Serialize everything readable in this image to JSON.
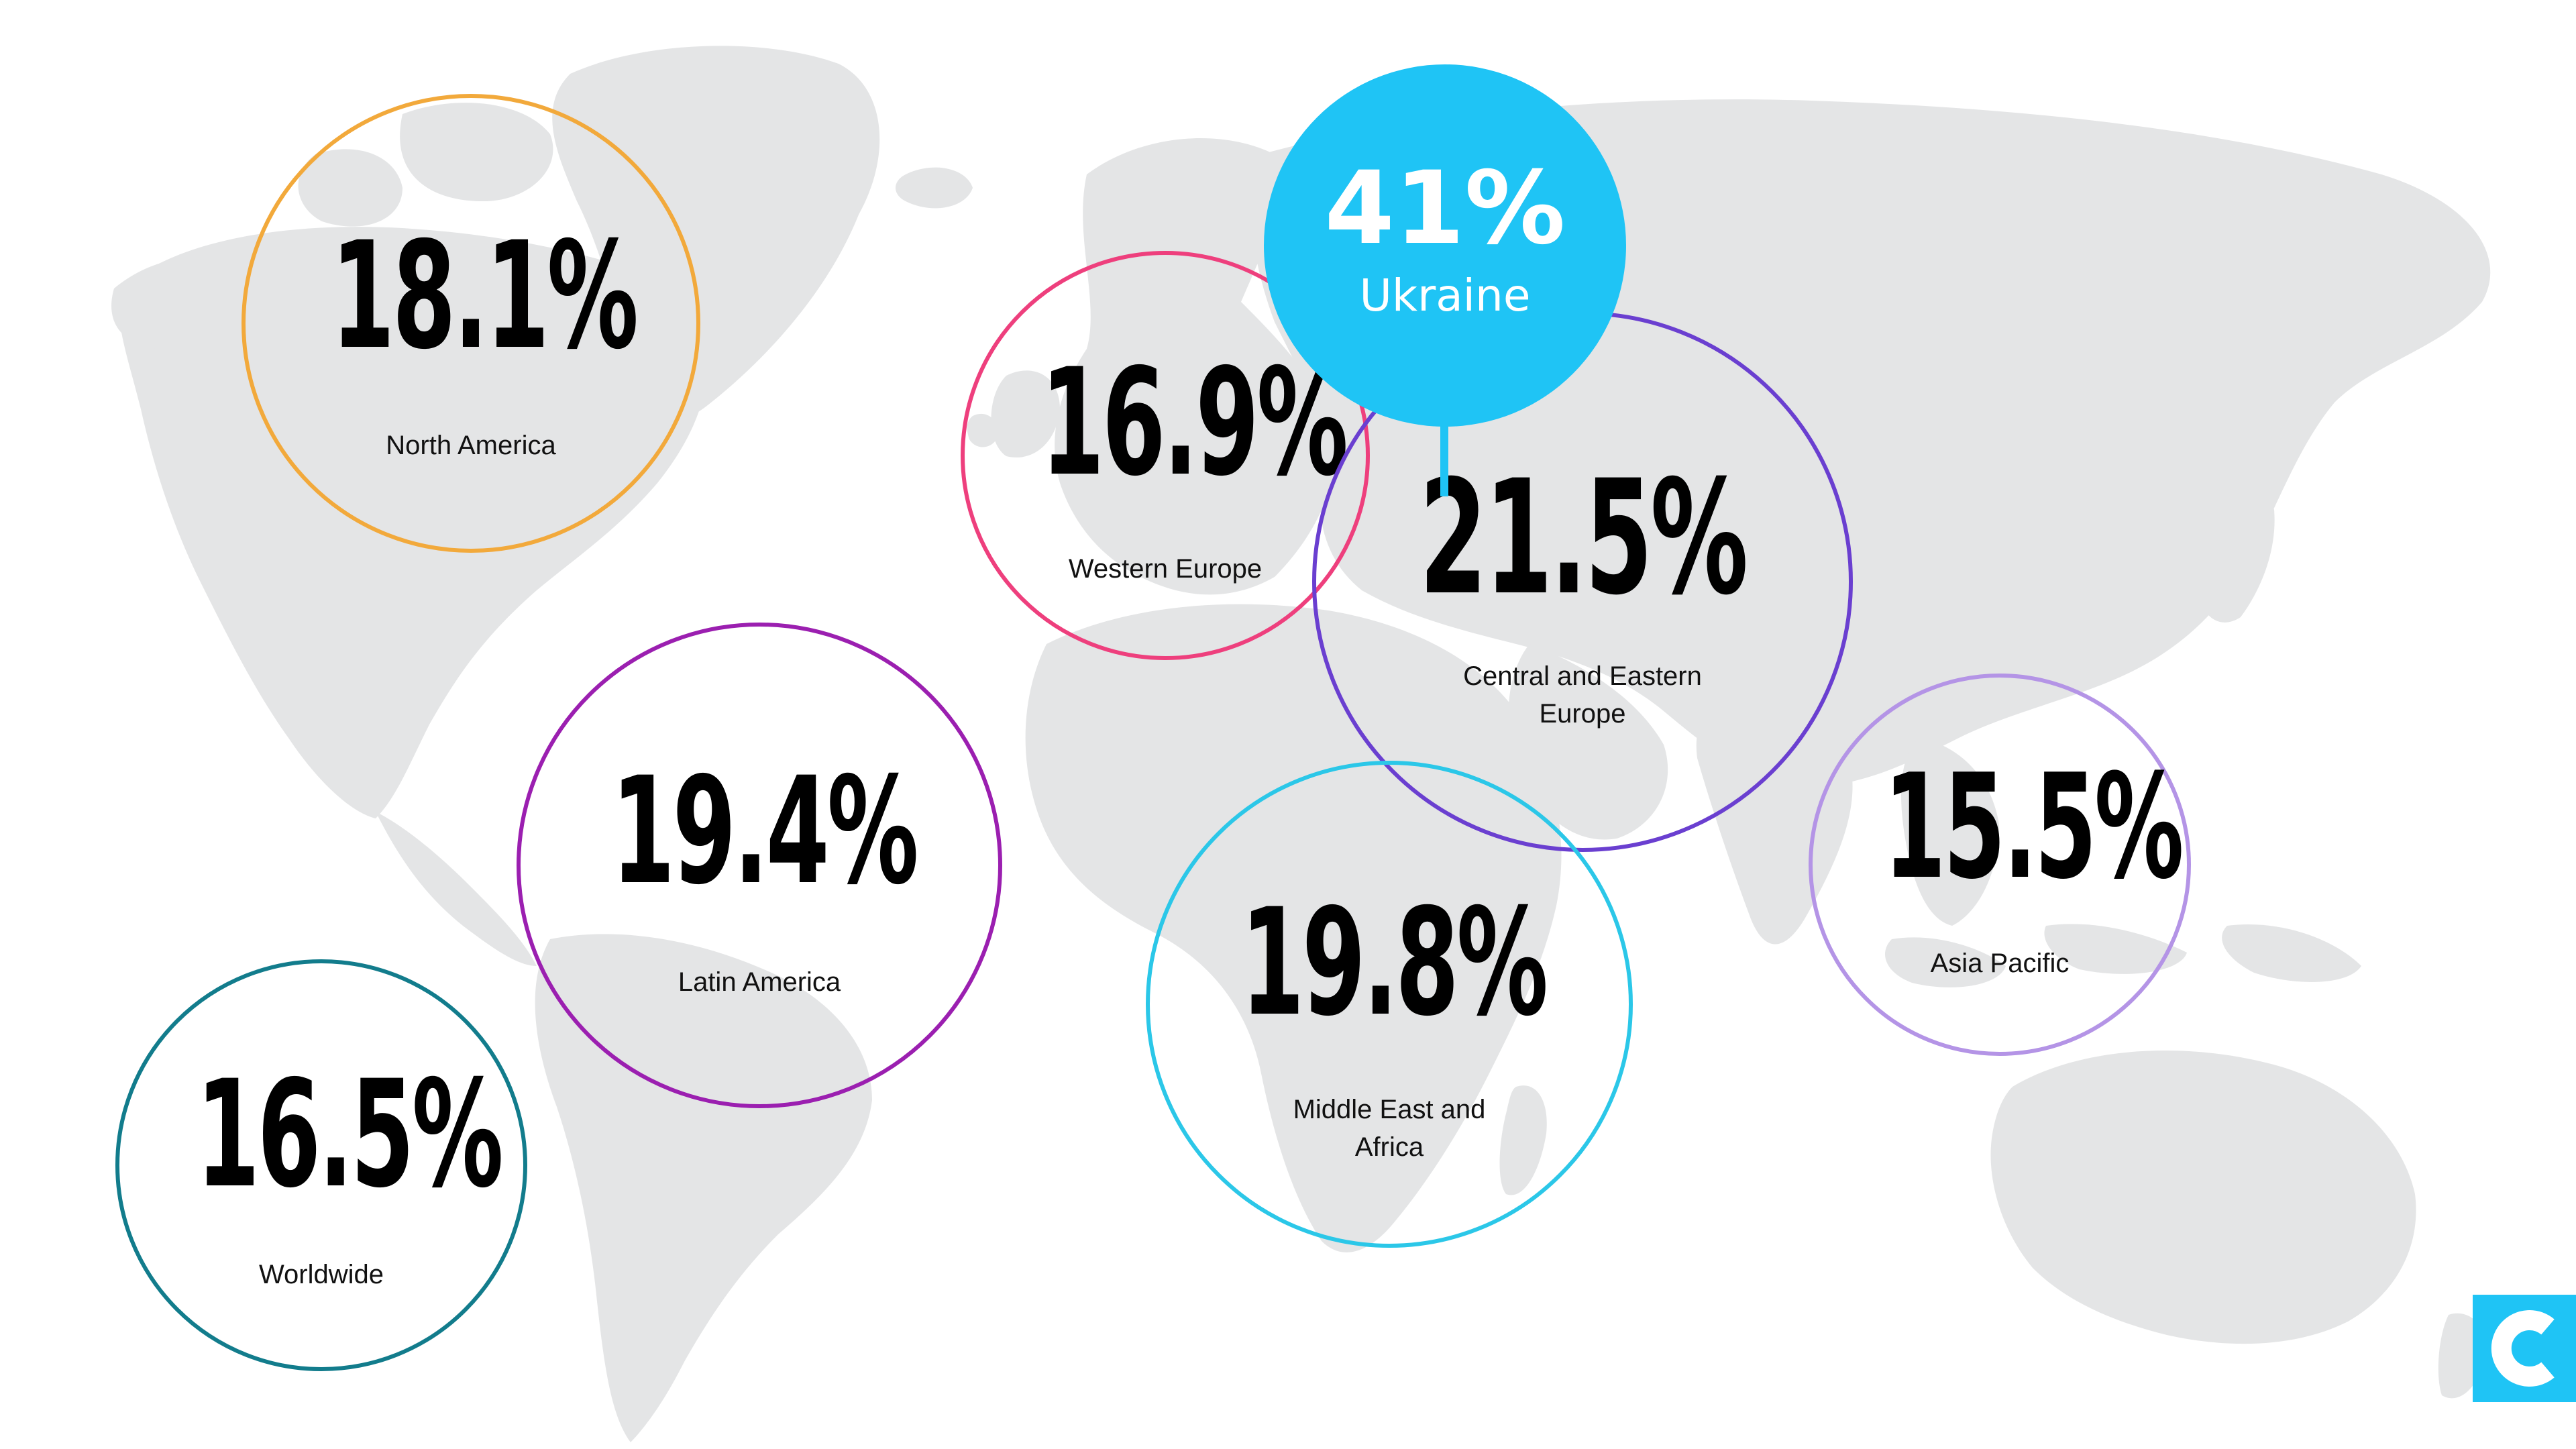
{
  "colors": {
    "map_land": "#e4e5e6",
    "ukraine_fill": "#1fc4f5",
    "value_text": "#000000",
    "label_text": "#111111"
  },
  "highlight": {
    "value": "41%",
    "label": "Ukraine",
    "color": "#1fc4f5"
  },
  "regions": [
    {
      "id": "north-america",
      "value": "18.1%",
      "label_lines": [
        "North America"
      ],
      "ring_color": "#f2a93b"
    },
    {
      "id": "western-europe",
      "value": "16.9%",
      "label_lines": [
        "Western Europe"
      ],
      "ring_color": "#ee3f7d"
    },
    {
      "id": "central-eastern-europe",
      "value": "21.5%",
      "label_lines": [
        "Central and Eastern",
        "Europe"
      ],
      "ring_color": "#6a3fd0"
    },
    {
      "id": "latin-america",
      "value": "19.4%",
      "label_lines": [
        "Latin America"
      ],
      "ring_color": "#9b1fb0"
    },
    {
      "id": "middle-east-africa",
      "value": "19.8%",
      "label_lines": [
        "Middle East and",
        "Africa"
      ],
      "ring_color": "#2bc7e8"
    },
    {
      "id": "asia-pacific",
      "value": "15.5%",
      "label_lines": [
        "Asia Pacific"
      ],
      "ring_color": "#b494e6"
    },
    {
      "id": "worldwide",
      "value": "16.5%",
      "label_lines": [
        "Worldwide"
      ],
      "ring_color": "#127c8c"
    }
  ],
  "logo": {
    "icon": "c-logo-icon",
    "color": "#1fc4f5"
  }
}
